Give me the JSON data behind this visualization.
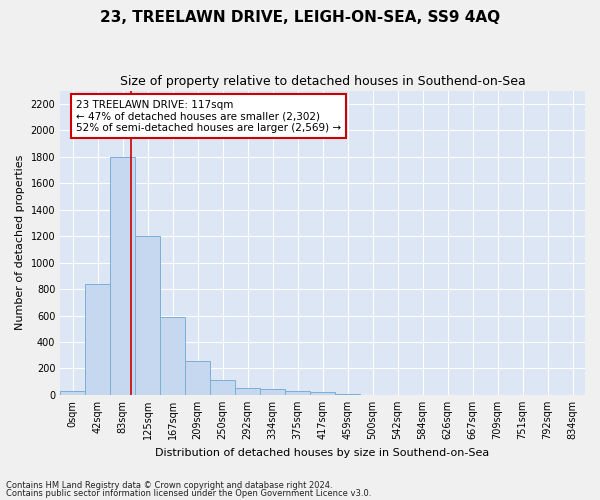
{
  "title": "23, TREELAWN DRIVE, LEIGH-ON-SEA, SS9 4AQ",
  "subtitle": "Size of property relative to detached houses in Southend-on-Sea",
  "xlabel": "Distribution of detached houses by size in Southend-on-Sea",
  "ylabel": "Number of detached properties",
  "bin_labels": [
    "0sqm",
    "42sqm",
    "83sqm",
    "125sqm",
    "167sqm",
    "209sqm",
    "250sqm",
    "292sqm",
    "334sqm",
    "375sqm",
    "417sqm",
    "459sqm",
    "500sqm",
    "542sqm",
    "584sqm",
    "626sqm",
    "667sqm",
    "709sqm",
    "751sqm",
    "792sqm",
    "834sqm"
  ],
  "bar_heights": [
    30,
    840,
    1800,
    1200,
    590,
    260,
    115,
    50,
    45,
    30,
    20,
    5,
    0,
    0,
    0,
    0,
    0,
    0,
    0,
    0,
    0
  ],
  "bar_color": "#c5d8f0",
  "bar_edge_color": "#7bafd4",
  "property_bin_index": 2,
  "red_line_x": 2.82,
  "annotation_text": "23 TREELAWN DRIVE: 117sqm\n← 47% of detached houses are smaller (2,302)\n52% of semi-detached houses are larger (2,569) →",
  "annotation_box_color": "#ffffff",
  "annotation_border_color": "#cc0000",
  "ylim_max": 2300,
  "yticks": [
    0,
    200,
    400,
    600,
    800,
    1000,
    1200,
    1400,
    1600,
    1800,
    2000,
    2200
  ],
  "plot_bg_color": "#dce6f5",
  "grid_color": "#ffffff",
  "fig_bg_color": "#f0f0f0",
  "title_fontsize": 11,
  "subtitle_fontsize": 9,
  "axis_label_fontsize": 8,
  "tick_fontsize": 7,
  "footnote1": "Contains HM Land Registry data © Crown copyright and database right 2024.",
  "footnote2": "Contains public sector information licensed under the Open Government Licence v3.0."
}
